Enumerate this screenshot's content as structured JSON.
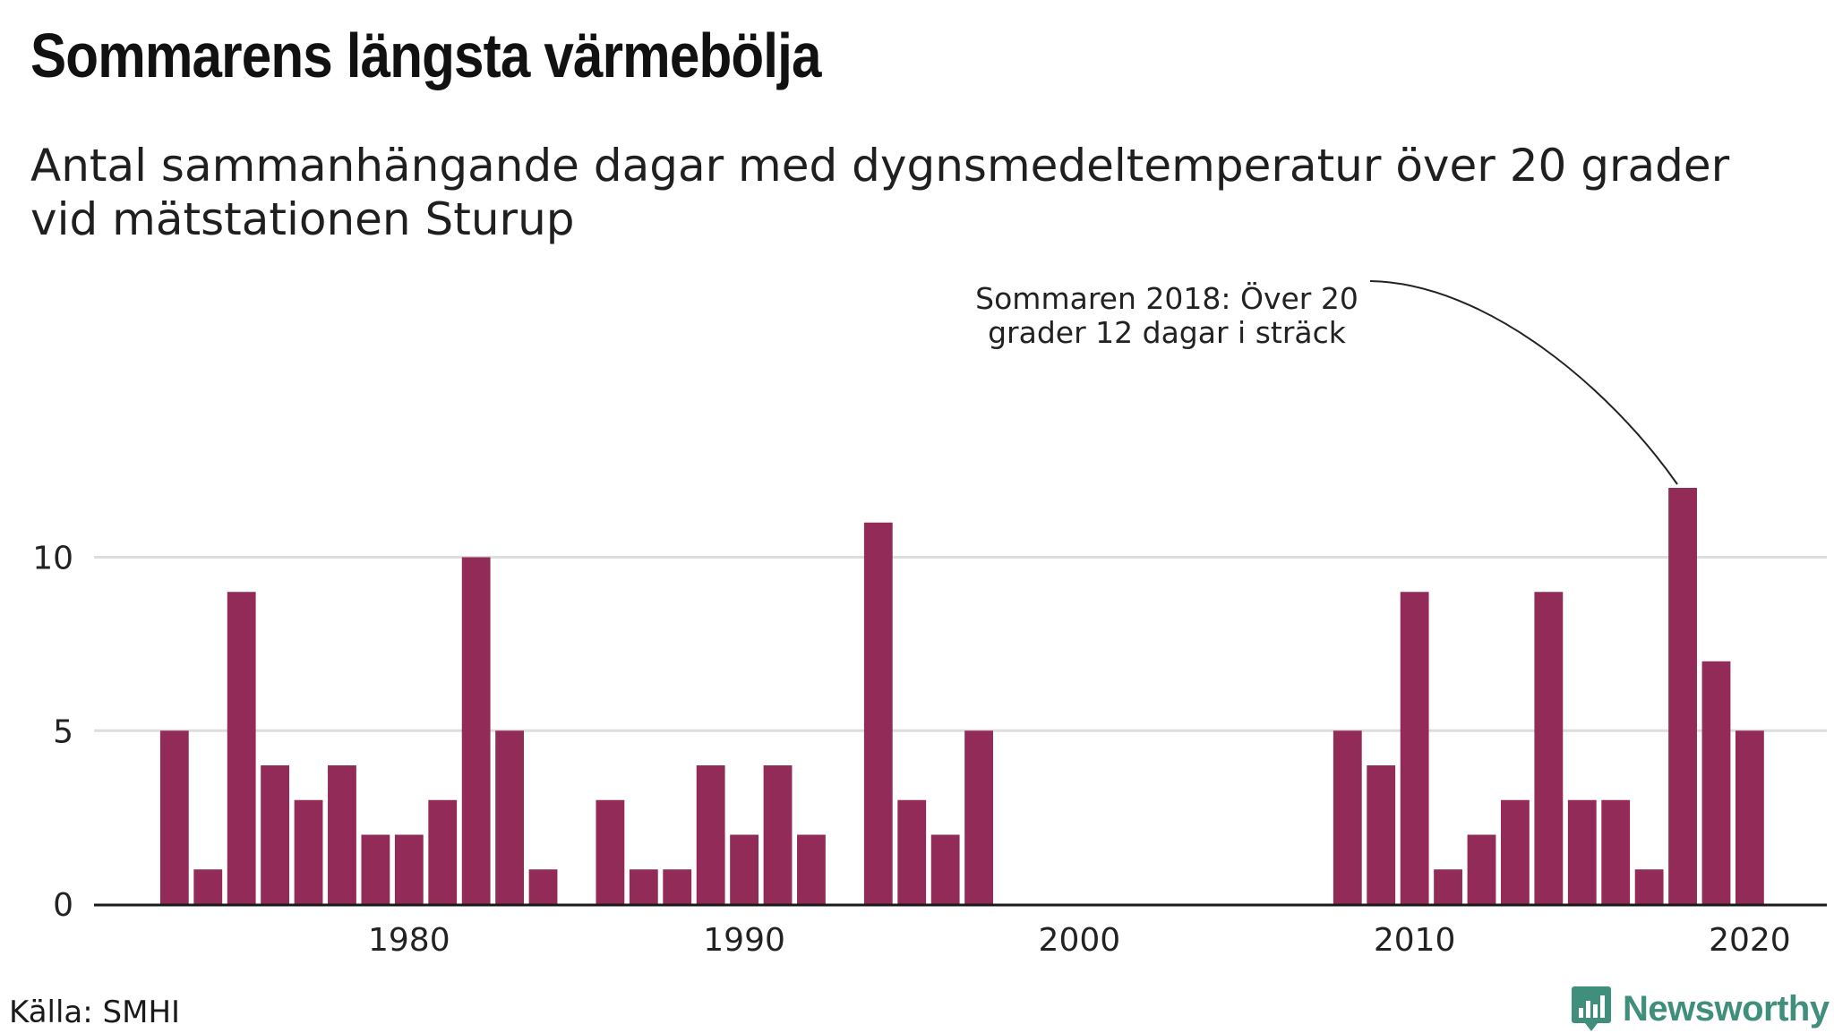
{
  "title": "Sommarens längsta värmebölja",
  "subtitle": "Antal sammanhängande dagar med dygnsmedeltemperatur över 20 grader vid mätstationen Sturup",
  "source": "Källa: SMHI",
  "logo": {
    "text": "Newsworthy",
    "icon": "bar-chart-pin-icon",
    "color": "#3f8f7c"
  },
  "colors": {
    "bar": "#922b57",
    "grid": "#dddddd",
    "axis": "#1a1a1a"
  },
  "chart_data": {
    "type": "bar",
    "x": [
      1973,
      1974,
      1975,
      1976,
      1977,
      1978,
      1979,
      1980,
      1981,
      1982,
      1983,
      1984,
      1985,
      1986,
      1987,
      1988,
      1989,
      1990,
      1991,
      1992,
      1993,
      1994,
      1995,
      1996,
      1997,
      1998,
      1999,
      2000,
      2001,
      2002,
      2003,
      2004,
      2005,
      2006,
      2007,
      2008,
      2009,
      2010,
      2011,
      2012,
      2013,
      2014,
      2015,
      2016,
      2017,
      2018,
      2019,
      2020
    ],
    "values": [
      5,
      1,
      9,
      4,
      3,
      4,
      2,
      2,
      3,
      10,
      5,
      1,
      0,
      3,
      1,
      1,
      4,
      2,
      4,
      2,
      0,
      11,
      3,
      2,
      5,
      0,
      0,
      0,
      0,
      0,
      0,
      0,
      0,
      0,
      0,
      5,
      4,
      9,
      1,
      2,
      3,
      9,
      3,
      3,
      1,
      12,
      7,
      5
    ],
    "xticks": [
      1980,
      1990,
      2000,
      2010,
      2020
    ],
    "yticks": [
      0,
      5,
      10
    ],
    "xlim": [
      1970.6,
      2022.3
    ],
    "ylim": [
      0,
      12
    ],
    "grid": "horizontal",
    "annotation": {
      "x": 2018,
      "lines": [
        "Sommaren 2018: Över 20",
        "grader 12 dagar i sträck"
      ]
    }
  }
}
